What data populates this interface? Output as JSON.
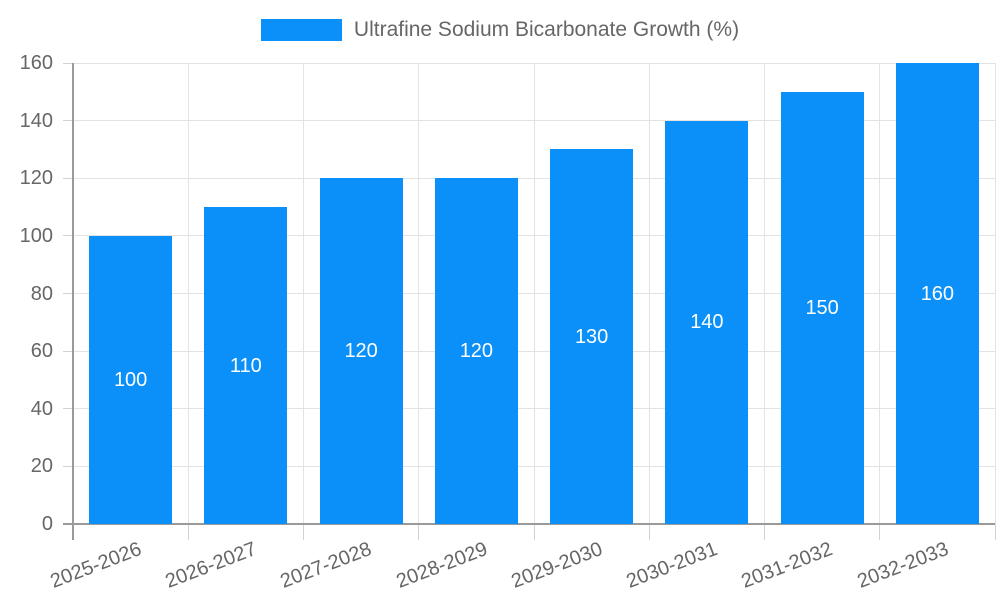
{
  "chart_data": {
    "type": "bar",
    "title": "Ultrafine Sodium Bicarbonate Growth (%)",
    "categories": [
      "2025-2026",
      "2026-2027",
      "2027-2028",
      "2028-2029",
      "2029-2030",
      "2030-2031",
      "2031-2032",
      "2032-2033"
    ],
    "values": [
      100,
      110,
      120,
      120,
      130,
      140,
      150,
      160
    ],
    "xlabel": "",
    "ylabel": "",
    "ylim": [
      0,
      160
    ],
    "ytick_step": 20,
    "yticks": [
      0,
      20,
      40,
      60,
      80,
      100,
      120,
      140,
      160
    ],
    "grid": true,
    "legend_position": "top",
    "bar_labels_inside": true,
    "colors": {
      "bar": "#0a90f8",
      "bar_label": "#ffffff",
      "axis_line": "#9a9a9a",
      "gridline": "#e3e3e3",
      "tick_mark": "#d2d2d2",
      "text": "#666666",
      "background": "#ffffff"
    }
  }
}
